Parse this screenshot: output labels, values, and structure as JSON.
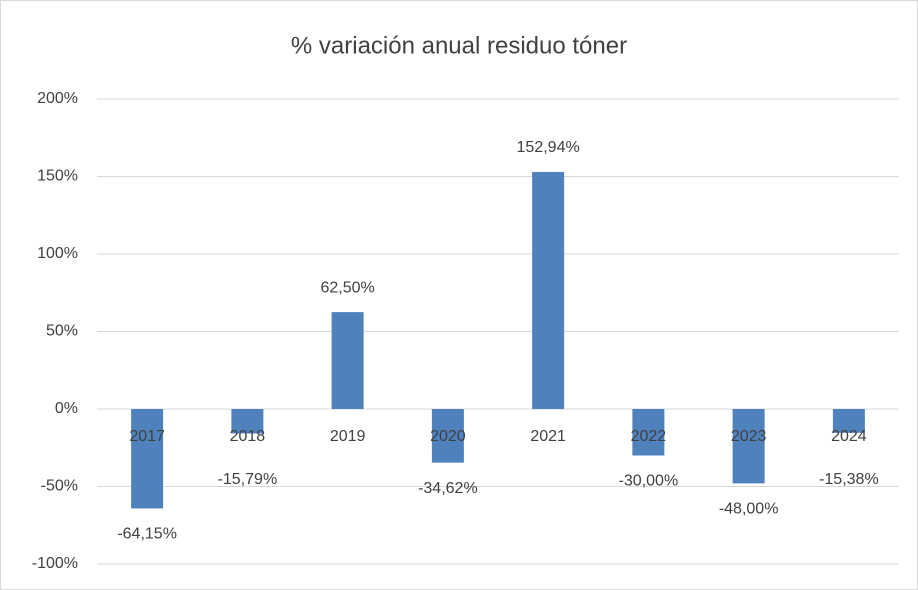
{
  "chart_data": {
    "type": "bar",
    "title": "% variación anual residuo tóner",
    "categories": [
      "2017",
      "2018",
      "2019",
      "2020",
      "2021",
      "2022",
      "2023",
      "2024"
    ],
    "values": [
      -64.15,
      -15.79,
      62.5,
      -34.62,
      152.94,
      -30,
      -48,
      -15.38
    ],
    "value_labels": [
      "-64,15%",
      "-15,79%",
      "62,50%",
      "-34,62%",
      "152,94%",
      "-30,00%",
      "-48,00%",
      "-15,38%"
    ],
    "color": "#4f81bd",
    "ylim": [
      -100,
      200
    ],
    "yticks": [
      {
        "value": -100,
        "label": "-100%"
      },
      {
        "value": -50,
        "label": "-50%"
      },
      {
        "value": 0,
        "label": "0%"
      },
      {
        "value": 50,
        "label": "50%"
      },
      {
        "value": 100,
        "label": "100%"
      },
      {
        "value": 150,
        "label": "150%"
      },
      {
        "value": 200,
        "label": "200%"
      }
    ],
    "grid": true
  }
}
